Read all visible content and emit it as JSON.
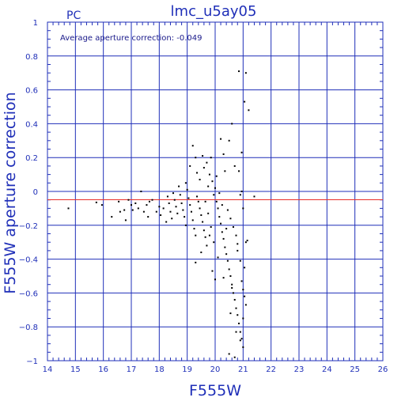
{
  "chart_data": {
    "type": "scatter",
    "title": "lmc_u5ay05",
    "corner_label": "PC",
    "annotation": "Average aperture correction: -0.049",
    "xlabel": "F555W",
    "ylabel": "F555W aperture correction",
    "xlim": [
      14,
      26
    ],
    "ylim": [
      -1,
      1
    ],
    "xticks": [
      14,
      15,
      16,
      17,
      18,
      19,
      20,
      21,
      22,
      23,
      24,
      25,
      26
    ],
    "yticks": [
      -1,
      -0.8,
      -0.6,
      -0.4,
      -0.2,
      0,
      0.2,
      0.4,
      0.6,
      0.8,
      1
    ],
    "xtick_labels": [
      "14",
      "15",
      "16",
      "17",
      "18",
      "19",
      "20",
      "21",
      "22",
      "23",
      "24",
      "25",
      "26"
    ],
    "ytick_labels": [
      "−1",
      "−0.8",
      "−0.6",
      "−0.4",
      "−0.2",
      "0",
      "0.2",
      "0.4",
      "0.6",
      "0.8",
      "1"
    ],
    "grid": true,
    "reference_line": {
      "y": -0.049,
      "color": "#e8302a"
    },
    "colors": {
      "axis": "#1f2fb8",
      "points": "#000000",
      "reference": "#e8302a"
    },
    "points": [
      [
        14.75,
        -0.1
      ],
      [
        15.75,
        -0.065
      ],
      [
        15.95,
        -0.08
      ],
      [
        16.3,
        -0.15
      ],
      [
        16.55,
        -0.06
      ],
      [
        16.6,
        -0.12
      ],
      [
        16.75,
        -0.11
      ],
      [
        16.8,
        -0.17
      ],
      [
        16.9,
        -0.05
      ],
      [
        17.0,
        -0.08
      ],
      [
        17.05,
        -0.11
      ],
      [
        17.15,
        -0.07
      ],
      [
        17.25,
        -0.1
      ],
      [
        17.35,
        0.0
      ],
      [
        17.45,
        -0.12
      ],
      [
        17.55,
        -0.08
      ],
      [
        17.6,
        -0.15
      ],
      [
        17.65,
        -0.06
      ],
      [
        17.75,
        -0.05
      ],
      [
        17.9,
        -0.12
      ],
      [
        18.0,
        -0.09
      ],
      [
        18.05,
        -0.14
      ],
      [
        18.15,
        -0.1
      ],
      [
        18.25,
        -0.18
      ],
      [
        18.3,
        -0.03
      ],
      [
        18.35,
        -0.07
      ],
      [
        18.4,
        -0.12
      ],
      [
        18.45,
        -0.16
      ],
      [
        18.5,
        -0.01
      ],
      [
        18.55,
        -0.05
      ],
      [
        18.6,
        -0.09
      ],
      [
        18.65,
        -0.13
      ],
      [
        18.7,
        0.03
      ],
      [
        18.75,
        -0.02
      ],
      [
        18.8,
        -0.07
      ],
      [
        18.85,
        -0.11
      ],
      [
        18.9,
        -0.15
      ],
      [
        18.95,
        -0.2
      ],
      [
        19.0,
        0.01
      ],
      [
        19.05,
        -0.04
      ],
      [
        19.1,
        -0.08
      ],
      [
        19.15,
        -0.12
      ],
      [
        19.2,
        -0.17
      ],
      [
        19.25,
        -0.22
      ],
      [
        19.3,
        -0.26
      ],
      [
        19.35,
        -0.03
      ],
      [
        19.4,
        -0.06
      ],
      [
        19.45,
        -0.1
      ],
      [
        19.5,
        -0.14
      ],
      [
        19.55,
        -0.18
      ],
      [
        19.6,
        -0.23
      ],
      [
        19.65,
        -0.27
      ],
      [
        19.7,
        -0.32
      ],
      [
        18.95,
        0.05
      ],
      [
        19.1,
        0.15
      ],
      [
        19.2,
        0.27
      ],
      [
        19.3,
        0.2
      ],
      [
        19.35,
        0.11
      ],
      [
        19.45,
        0.07
      ],
      [
        19.55,
        0.21
      ],
      [
        19.6,
        0.14
      ],
      [
        19.7,
        0.17
      ],
      [
        19.75,
        0.03
      ],
      [
        19.8,
        0.1
      ],
      [
        19.85,
        0.2
      ],
      [
        19.9,
        0.06
      ],
      [
        19.95,
        -0.02
      ],
      [
        20.0,
        0.02
      ],
      [
        20.05,
        -0.06
      ],
      [
        20.1,
        -0.1
      ],
      [
        20.15,
        -0.15
      ],
      [
        20.2,
        -0.19
      ],
      [
        20.25,
        -0.24
      ],
      [
        20.3,
        -0.28
      ],
      [
        20.35,
        -0.33
      ],
      [
        20.4,
        -0.37
      ],
      [
        20.45,
        -0.41
      ],
      [
        20.5,
        -0.46
      ],
      [
        20.55,
        -0.5
      ],
      [
        20.6,
        -0.55
      ],
      [
        20.65,
        -0.6
      ],
      [
        20.7,
        -0.64
      ],
      [
        20.75,
        -0.69
      ],
      [
        20.8,
        -0.73
      ],
      [
        20.85,
        -0.78
      ],
      [
        20.9,
        -0.83
      ],
      [
        20.95,
        -0.87
      ],
      [
        21.0,
        -0.92
      ],
      [
        20.2,
        0.31
      ],
      [
        20.3,
        0.22
      ],
      [
        20.5,
        0.3
      ],
      [
        20.6,
        0.4
      ],
      [
        20.7,
        0.15
      ],
      [
        20.85,
        0.12
      ],
      [
        20.95,
        0.23
      ],
      [
        21.05,
        0.53
      ],
      [
        21.2,
        0.48
      ],
      [
        20.85,
        0.71
      ],
      [
        21.1,
        0.7
      ],
      [
        21.1,
        -0.3
      ],
      [
        21.15,
        -0.29
      ],
      [
        21.4,
        -0.03
      ],
      [
        21.05,
        -0.62
      ],
      [
        21.1,
        -0.67
      ],
      [
        20.55,
        -0.72
      ],
      [
        20.5,
        -0.96
      ],
      [
        19.3,
        -0.42
      ],
      [
        19.9,
        -0.47
      ],
      [
        20.8,
        -0.31
      ],
      [
        20.9,
        -0.41
      ],
      [
        19.5,
        -0.36
      ],
      [
        20.1,
        -0.39
      ],
      [
        20.3,
        -0.51
      ],
      [
        20.6,
        -0.57
      ],
      [
        21.0,
        -0.58
      ],
      [
        20.95,
        -0.53
      ],
      [
        20.0,
        -0.52
      ],
      [
        19.65,
        -0.06
      ],
      [
        19.75,
        -0.13
      ],
      [
        19.85,
        -0.21
      ],
      [
        20.15,
        -0.01
      ],
      [
        20.25,
        -0.08
      ],
      [
        20.45,
        -0.11
      ],
      [
        20.55,
        -0.16
      ],
      [
        20.65,
        -0.21
      ],
      [
        20.75,
        -0.26
      ],
      [
        20.9,
        -0.02
      ],
      [
        21.0,
        -0.1
      ],
      [
        20.05,
        0.09
      ],
      [
        20.35,
        0.12
      ],
      [
        20.95,
        0.0
      ],
      [
        19.8,
        -0.26
      ],
      [
        19.95,
        -0.3
      ],
      [
        20.4,
        -0.22
      ],
      [
        20.8,
        -0.35
      ],
      [
        21.05,
        -0.45
      ],
      [
        20.75,
        -0.83
      ],
      [
        20.9,
        -0.88
      ],
      [
        21.0,
        -0.75
      ],
      [
        20.7,
        -0.98
      ]
    ]
  }
}
